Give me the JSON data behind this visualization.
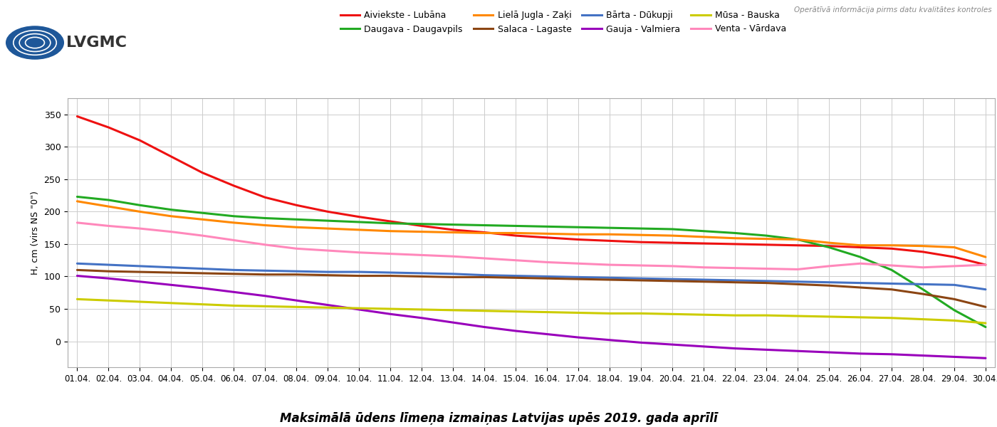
{
  "title": "Maksimālā ūdens līmeņa izmaiņas Latvijas upēs 2019. gada aprīlī",
  "ylabel": "H, cm (virs NS \"0\")",
  "watermark": "Operātīvā informācija pirms datu kvalitātes kontroles",
  "xlabels": [
    "01.04.",
    "02.04.",
    "03.04.",
    "04.04.",
    "05.04.",
    "06.04.",
    "07.04.",
    "08.04.",
    "09.04.",
    "10.04.",
    "11.04.",
    "12.04.",
    "13.04.",
    "14.04.",
    "15.04.",
    "16.04.",
    "17.04.",
    "18.04.",
    "19.04.",
    "20.04.",
    "21.04.",
    "22.04.",
    "23.04.",
    "24.04.",
    "25.04.",
    "26.04.",
    "27.04.",
    "28.04.",
    "29.04.",
    "30.04."
  ],
  "legend_order": [
    "Aiviekste - Lubāna",
    "Daugava - Daugavpils",
    "Lielā Jugla - Zaķi",
    "Salaca - Lagaste",
    "Bārta - Dūkupji",
    "Gauja - Valmiera",
    "Mūsa - Bauska",
    "Venta - Vārdava"
  ],
  "series": [
    {
      "label": "Aiviekste - Lubāna",
      "color": "#ee1111",
      "values": [
        347,
        330,
        310,
        285,
        260,
        240,
        222,
        210,
        200,
        192,
        185,
        178,
        172,
        168,
        163,
        160,
        157,
        155,
        153,
        152,
        151,
        150,
        149,
        148,
        147,
        145,
        143,
        138,
        130,
        118
      ]
    },
    {
      "label": "Daugava - Daugavpils",
      "color": "#22aa22",
      "values": [
        223,
        218,
        210,
        203,
        198,
        193,
        190,
        188,
        186,
        184,
        182,
        181,
        180,
        179,
        178,
        177,
        176,
        175,
        174,
        173,
        170,
        167,
        163,
        157,
        145,
        130,
        110,
        80,
        48,
        22
      ]
    },
    {
      "label": "Bārta - Dūkupji",
      "color": "#4472c4",
      "values": [
        120,
        118,
        116,
        114,
        112,
        110,
        109,
        108,
        107,
        107,
        106,
        105,
        104,
        102,
        101,
        100,
        99,
        98,
        97,
        96,
        95,
        94,
        93,
        92,
        91,
        90,
        89,
        88,
        87,
        80
      ]
    },
    {
      "label": "Gauja - Valmiera",
      "color": "#9900bb",
      "values": [
        101,
        97,
        92,
        87,
        82,
        76,
        70,
        63,
        56,
        49,
        42,
        36,
        29,
        22,
        16,
        11,
        6,
        2,
        -2,
        -5,
        -8,
        -11,
        -13,
        -15,
        -17,
        -19,
        -20,
        -22,
        -24,
        -26
      ]
    },
    {
      "label": "Lielā Jugla - Zaķi",
      "color": "#ff8800",
      "values": [
        216,
        208,
        200,
        193,
        188,
        183,
        179,
        176,
        174,
        172,
        170,
        169,
        168,
        167,
        167,
        166,
        165,
        165,
        164,
        163,
        161,
        159,
        158,
        157,
        152,
        148,
        148,
        147,
        145,
        130
      ]
    },
    {
      "label": "Mūsa - Bauska",
      "color": "#cccc00",
      "values": [
        65,
        63,
        61,
        59,
        57,
        55,
        54,
        53,
        52,
        51,
        50,
        49,
        48,
        47,
        46,
        45,
        44,
        43,
        43,
        42,
        41,
        40,
        40,
        39,
        38,
        37,
        36,
        34,
        32,
        28
      ]
    },
    {
      "label": "Salaca - Lagaste",
      "color": "#8b4513",
      "values": [
        110,
        108,
        107,
        106,
        105,
        104,
        103,
        103,
        102,
        101,
        101,
        100,
        99,
        99,
        98,
        97,
        96,
        95,
        94,
        93,
        92,
        91,
        90,
        88,
        86,
        83,
        80,
        73,
        65,
        53
      ]
    },
    {
      "label": "Venta - Vārdava",
      "color": "#ff88bb",
      "values": [
        183,
        178,
        174,
        169,
        163,
        156,
        149,
        143,
        140,
        137,
        135,
        133,
        131,
        128,
        125,
        122,
        120,
        118,
        117,
        116,
        114,
        113,
        112,
        111,
        116,
        120,
        117,
        114,
        116,
        118
      ]
    }
  ],
  "ylim": [
    -40,
    375
  ],
  "yticks": [
    0,
    50,
    100,
    150,
    200,
    250,
    300,
    350
  ],
  "background_color": "#ffffff",
  "grid_color": "#cccccc",
  "logo_text": "LVGMC",
  "logo_color": "#1a5a9a"
}
